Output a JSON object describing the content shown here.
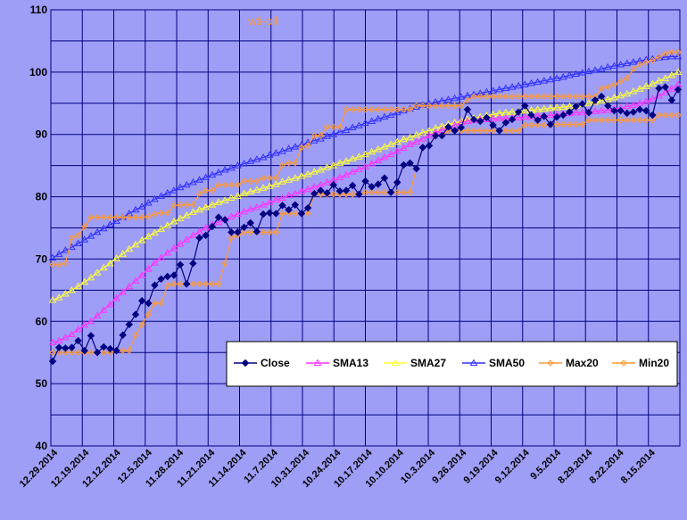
{
  "chart_data": {
    "type": "line",
    "title": "wti-oil",
    "xlabel": "",
    "ylabel": "",
    "ylim": [
      40,
      110
    ],
    "yticks": [
      40,
      50,
      60,
      70,
      80,
      90,
      100,
      110
    ],
    "x_tick_labels": [
      "12.29.2014",
      "12.19.2014",
      "12.12.2014",
      "12.5.2014",
      "11.28.2014",
      "11.21.2014",
      "11.14.2014",
      "11.7.2014",
      "10.31.2014",
      "10.24.2014",
      "10.17.2014",
      "10.10.2014",
      "10.3.2014",
      "9.26.2014",
      "9.19.2014",
      "9.12.2014",
      "9.5.2014",
      "8.29.2014",
      "8.22.2014",
      "8.15.2014"
    ],
    "grid": true,
    "legend_position": "lower-right",
    "colors": {
      "background": "#9e9ef7",
      "plot_bg": "#9e9ef7",
      "grid": "#000080",
      "Close": "#000080",
      "SMA13": "#ff33ff",
      "SMA27": "#ffff33",
      "SMA50": "#3333ff",
      "Max20": "#ff9933",
      "Min20": "#ff9933"
    },
    "series": [
      {
        "name": "Close",
        "marker": "diamond-filled",
        "values": [
          53.6,
          55.8,
          55.7,
          55.8,
          56.9,
          55.3,
          57.7,
          55.0,
          55.9,
          55.6,
          55.3,
          57.8,
          59.5,
          61.1,
          63.3,
          62.9,
          65.8,
          66.8,
          67.2,
          67.4,
          69.1,
          66.0,
          69.3,
          73.4,
          73.8,
          75.2,
          76.7,
          76.3,
          74.3,
          74.3,
          75.1,
          75.8,
          74.4,
          77.2,
          77.4,
          77.3,
          78.6,
          77.9,
          78.7,
          77.3,
          78.2,
          80.5,
          81.0,
          80.6,
          81.9,
          80.9,
          81.0,
          81.8,
          80.4,
          82.5,
          81.6,
          82.0,
          83.0,
          80.7,
          82.3,
          85.1,
          85.4,
          84.5,
          87.9,
          88.2,
          89.8,
          89.8,
          91.2,
          90.6,
          91.1,
          94.0,
          92.4,
          92.1,
          92.7,
          91.5,
          90.6,
          91.9,
          92.4,
          93.6,
          94.6,
          93.1,
          92.3,
          92.9,
          91.6,
          92.8,
          93.1,
          93.6,
          94.5,
          94.9,
          93.5,
          95.5,
          96.1,
          94.6,
          93.8,
          93.8,
          93.4,
          93.6,
          94.0,
          93.8,
          93.1,
          97.4,
          97.6,
          95.5,
          97.2
        ]
      },
      {
        "name": "SMA13",
        "marker": "triangle-open",
        "values": [
          56.6,
          56.9,
          57.4,
          57.9,
          58.7,
          59.4,
          60.0,
          60.9,
          61.8,
          62.7,
          63.7,
          64.7,
          65.6,
          66.5,
          67.4,
          68.4,
          69.4,
          70.2,
          71.0,
          71.7,
          72.4,
          73.1,
          73.8,
          74.4,
          75.0,
          75.5,
          75.9,
          76.4,
          76.8,
          77.2,
          77.6,
          78.0,
          78.3,
          78.7,
          79.1,
          79.5,
          79.8,
          80.2,
          80.5,
          80.9,
          81.2,
          81.6,
          81.9,
          82.3,
          82.7,
          83.1,
          83.5,
          84.0,
          84.4,
          84.8,
          85.3,
          85.8,
          86.3,
          86.8,
          87.3,
          87.8,
          88.4,
          88.8,
          89.3,
          89.8,
          90.3,
          90.7,
          91.1,
          91.5,
          91.9,
          92.1,
          92.3,
          92.4,
          92.4,
          92.5,
          92.6,
          92.6,
          92.6,
          92.7,
          92.8,
          92.9,
          93.0,
          93.0,
          93.1,
          93.2,
          93.3,
          93.4,
          93.5,
          93.5,
          93.6,
          93.7,
          93.8,
          93.9,
          94.1,
          94.2,
          94.5,
          94.7,
          95.0,
          95.3,
          95.7,
          96.2,
          96.7,
          97.3,
          98.0
        ]
      },
      {
        "name": "SMA27",
        "marker": "triangle-open",
        "values": [
          63.4,
          63.8,
          64.4,
          65.0,
          65.6,
          66.3,
          67.0,
          67.8,
          68.6,
          69.3,
          70.1,
          70.8,
          71.6,
          72.3,
          73.0,
          73.6,
          74.2,
          74.8,
          75.4,
          76.0,
          76.5,
          77.0,
          77.5,
          77.9,
          78.3,
          78.7,
          79.1,
          79.4,
          79.8,
          80.1,
          80.5,
          80.8,
          81.1,
          81.4,
          81.7,
          82.0,
          82.4,
          82.7,
          83.0,
          83.3,
          83.6,
          84.0,
          84.3,
          84.7,
          85.0,
          85.4,
          85.7,
          86.1,
          86.4,
          86.8,
          87.2,
          87.6,
          88.0,
          88.4,
          88.8,
          89.2,
          89.5,
          89.9,
          90.3,
          90.6,
          91.0,
          91.3,
          91.6,
          91.9,
          92.1,
          92.4,
          92.6,
          92.8,
          93.0,
          93.2,
          93.4,
          93.5,
          93.6,
          93.7,
          93.8,
          93.9,
          94.0,
          94.1,
          94.2,
          94.3,
          94.4,
          94.5,
          94.6,
          94.8,
          95.0,
          95.2,
          95.4,
          95.6,
          95.9,
          96.2,
          96.5,
          96.9,
          97.3,
          97.7,
          98.1,
          98.6,
          99.0,
          99.5,
          100.0
        ]
      },
      {
        "name": "SMA50",
        "marker": "triangle-open",
        "values": [
          70.2,
          70.8,
          71.4,
          71.9,
          72.5,
          73.1,
          73.7,
          74.3,
          74.9,
          75.5,
          76.1,
          76.7,
          77.3,
          77.9,
          78.4,
          79.0,
          79.6,
          80.1,
          80.6,
          81.0,
          81.5,
          81.9,
          82.3,
          82.7,
          83.1,
          83.5,
          83.9,
          84.3,
          84.6,
          85.0,
          85.3,
          85.7,
          86.0,
          86.3,
          86.7,
          87.0,
          87.3,
          87.7,
          88.0,
          88.3,
          88.7,
          89.0,
          89.3,
          89.7,
          90.0,
          90.4,
          90.7,
          91.1,
          91.4,
          91.8,
          92.1,
          92.5,
          92.8,
          93.1,
          93.5,
          93.8,
          94.1,
          94.4,
          94.7,
          94.9,
          95.2,
          95.4,
          95.6,
          95.8,
          96.0,
          96.2,
          96.4,
          96.6,
          96.8,
          97.0,
          97.2,
          97.4,
          97.6,
          97.8,
          98.0,
          98.2,
          98.4,
          98.6,
          98.8,
          99.0,
          99.2,
          99.5,
          99.7,
          99.9,
          100.1,
          100.3,
          100.5,
          100.8,
          101.0,
          101.2,
          101.4,
          101.6,
          101.8,
          102.0,
          102.1,
          102.3,
          102.4,
          102.5,
          102.5
        ]
      },
      {
        "name": "Max20",
        "marker": "diamond-open",
        "values": [
          69.1,
          69.1,
          69.3,
          73.4,
          73.8,
          75.2,
          76.7,
          76.7,
          76.7,
          76.7,
          76.7,
          76.7,
          76.7,
          76.7,
          76.7,
          76.8,
          77.2,
          77.4,
          77.4,
          78.6,
          78.7,
          78.7,
          78.7,
          80.5,
          81.0,
          81.0,
          81.9,
          81.9,
          81.9,
          81.9,
          82.5,
          82.5,
          82.5,
          83.0,
          83.0,
          83.0,
          85.1,
          85.4,
          85.4,
          87.9,
          88.2,
          89.8,
          89.8,
          91.2,
          91.2,
          91.2,
          94.0,
          94.0,
          94.0,
          94.0,
          94.0,
          94.0,
          94.0,
          94.0,
          94.0,
          94.0,
          94.0,
          94.6,
          94.6,
          94.6,
          94.6,
          94.6,
          94.6,
          94.6,
          94.6,
          95.5,
          96.1,
          96.1,
          96.1,
          96.1,
          96.1,
          96.1,
          96.1,
          96.1,
          96.1,
          96.1,
          96.1,
          96.1,
          96.1,
          96.1,
          96.1,
          96.1,
          96.1,
          96.1,
          96.1,
          96.1,
          97.4,
          97.6,
          98.0,
          98.5,
          99.0,
          100.5,
          101.2,
          101.6,
          101.9,
          102.4,
          103.0,
          103.2,
          103.2
        ]
      },
      {
        "name": "Min20",
        "marker": "diamond-open",
        "values": [
          55.0,
          55.0,
          55.0,
          55.0,
          55.0,
          55.0,
          55.0,
          55.0,
          55.0,
          55.0,
          55.3,
          55.3,
          55.3,
          57.8,
          59.5,
          61.1,
          62.9,
          62.9,
          65.8,
          66.0,
          66.0,
          66.0,
          66.0,
          66.0,
          66.0,
          66.0,
          66.0,
          69.3,
          73.4,
          73.8,
          74.3,
          74.3,
          74.3,
          74.3,
          74.3,
          74.3,
          77.3,
          77.3,
          77.3,
          77.3,
          77.3,
          80.4,
          80.4,
          80.4,
          80.4,
          80.4,
          80.4,
          80.4,
          80.4,
          80.7,
          80.7,
          80.7,
          80.7,
          80.7,
          80.7,
          80.7,
          80.7,
          84.5,
          87.9,
          88.2,
          89.8,
          89.8,
          90.6,
          90.6,
          90.6,
          90.6,
          90.6,
          90.6,
          90.6,
          90.6,
          90.6,
          90.6,
          90.6,
          90.6,
          91.5,
          91.5,
          91.5,
          91.5,
          91.5,
          91.6,
          91.6,
          91.6,
          91.6,
          91.6,
          92.3,
          92.3,
          92.3,
          92.3,
          92.3,
          92.3,
          92.3,
          92.3,
          92.3,
          92.3,
          92.3,
          93.1,
          93.1,
          93.1,
          93.1
        ]
      }
    ]
  }
}
